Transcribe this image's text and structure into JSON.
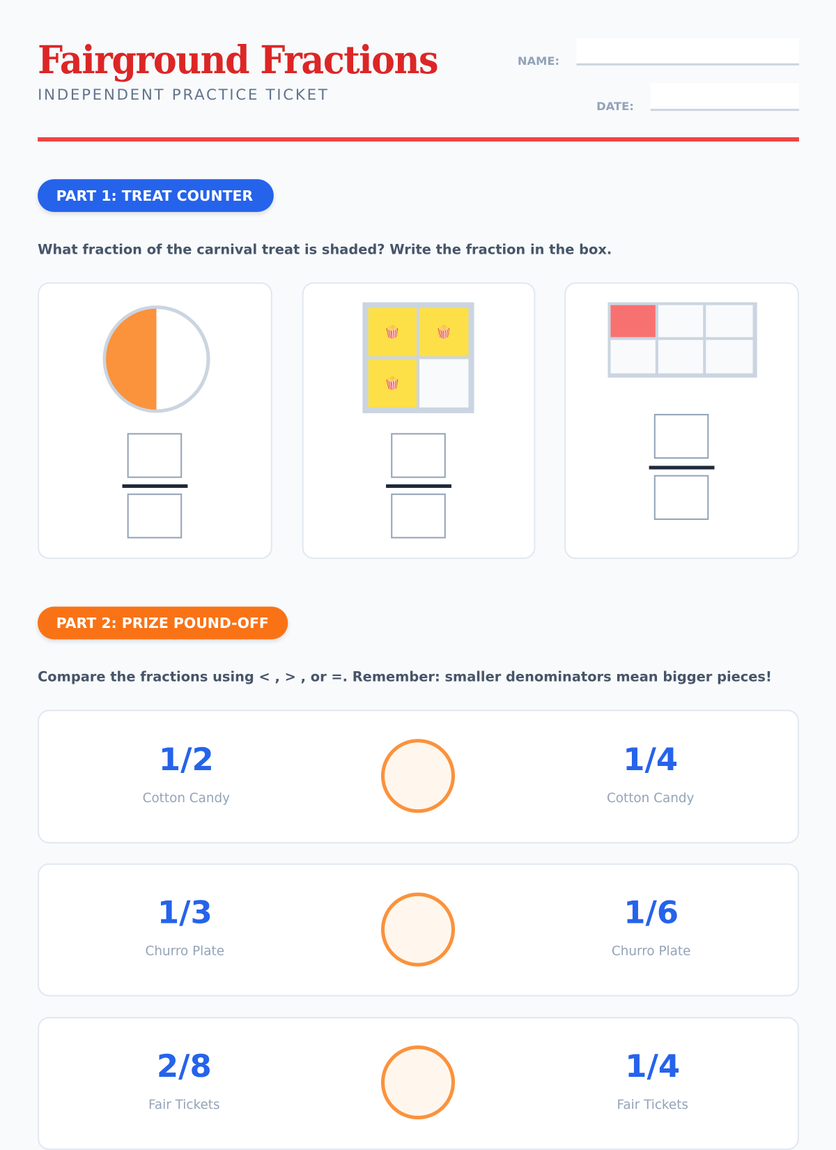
{
  "header": {
    "title": "Fairground Fractions",
    "subtitle": "INDEPENDENT PRACTICE TICKET",
    "name_label": "NAME:",
    "date_label": "DATE:"
  },
  "part1": {
    "badge": "PART 1: TREAT COUNTER",
    "instruction": "What fraction of the carnival treat is shaded? Write the fraction in the box.",
    "problems": [
      {
        "model": "circle",
        "parts": 2,
        "shaded": 1,
        "shade_color": "#fb923c"
      },
      {
        "model": "grid-2x2",
        "parts": 4,
        "shaded": 3,
        "shade_color": "#fde047",
        "icon": "popcorn-icon",
        "icon_glyph": "🍿"
      },
      {
        "model": "grid-3x2",
        "parts": 6,
        "shaded": 1,
        "shade_color": "#f87171"
      }
    ]
  },
  "part2": {
    "badge": "PART 2: PRIZE POUND-OFF",
    "instruction": "Compare the fractions using < , > , or =. Remember: smaller denominators mean bigger pieces!",
    "rows": [
      {
        "left": "1/2",
        "left_label": "Cotton Candy",
        "right": "1/4",
        "right_label": "Cotton Candy"
      },
      {
        "left": "1/3",
        "left_label": "Churro Plate",
        "right": "1/6",
        "right_label": "Churro Plate"
      },
      {
        "left": "2/8",
        "left_label": "Fair Tickets",
        "right": "1/4",
        "right_label": "Fair Tickets"
      }
    ]
  },
  "colors": {
    "title": "#dc2626",
    "part1": "#2563eb",
    "part2": "#f97316",
    "rule": "#ef4444"
  }
}
